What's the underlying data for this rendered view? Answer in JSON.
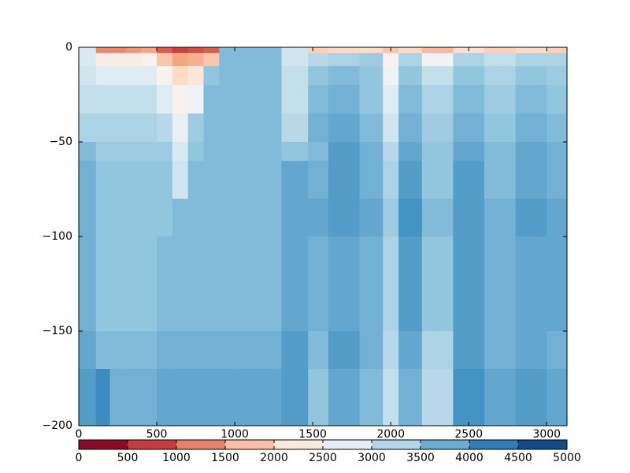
{
  "chart_data": {
    "type": "heatmap",
    "colormap": "RdBu",
    "xlim": [
      0,
      3130
    ],
    "ylim": [
      -200,
      0
    ],
    "xticks": [
      0,
      500,
      1000,
      1500,
      2000,
      2500,
      3000
    ],
    "yticks": [
      0,
      {
        "value": -50,
        "label": "−50"
      },
      {
        "value": -100,
        "label": "−100"
      },
      {
        "value": -150,
        "label": "−150"
      },
      {
        "value": -200,
        "label": "−200"
      }
    ],
    "x_edges": [
      0,
      110,
      200,
      300,
      400,
      500,
      600,
      700,
      800,
      900,
      1000,
      1300,
      1470,
      1600,
      1800,
      1950,
      2050,
      2200,
      2400,
      2600,
      2800,
      3000,
      3130
    ],
    "y_edges": [
      0,
      -3,
      -10,
      -20,
      -35,
      -50,
      -60,
      -80,
      -100,
      -150,
      -170,
      -200
    ],
    "values": [
      [
        2900,
        1300,
        1300,
        1400,
        1500,
        1000,
        800,
        900,
        1000,
        3600,
        3600,
        3000,
        1900,
        2000,
        2000,
        1800,
        2000,
        1700,
        2100,
        1900,
        2000,
        1900
      ],
      [
        2900,
        2300,
        2300,
        2300,
        2400,
        1800,
        1500,
        1600,
        1800,
        3600,
        3600,
        3000,
        3200,
        3300,
        3400,
        2400,
        3300,
        2600,
        3300,
        3100,
        3300,
        3300
      ],
      [
        3000,
        2800,
        2800,
        2800,
        2800,
        2400,
        2000,
        2200,
        3500,
        3600,
        3600,
        3100,
        3500,
        3600,
        3500,
        2600,
        3500,
        3100,
        3500,
        3300,
        3500,
        3400
      ],
      [
        3100,
        3100,
        3100,
        3100,
        3100,
        2800,
        2400,
        2600,
        3600,
        3600,
        3600,
        3100,
        3600,
        3700,
        3500,
        2800,
        3600,
        3300,
        3600,
        3400,
        3600,
        3500
      ],
      [
        3300,
        3300,
        3300,
        3300,
        3300,
        3200,
        2700,
        3400,
        3600,
        3600,
        3600,
        3200,
        3700,
        3800,
        3600,
        3000,
        3700,
        3400,
        3700,
        3500,
        3700,
        3600
      ],
      [
        3600,
        3400,
        3400,
        3400,
        3400,
        3400,
        2900,
        3500,
        3600,
        3600,
        3600,
        3500,
        3600,
        3900,
        3700,
        3200,
        3800,
        3500,
        3800,
        3600,
        3800,
        3700
      ],
      [
        3700,
        3500,
        3500,
        3500,
        3500,
        3500,
        3000,
        3600,
        3600,
        3600,
        3600,
        3800,
        3700,
        3900,
        3700,
        3300,
        3900,
        3500,
        3900,
        3600,
        3800,
        3700
      ],
      [
        3700,
        3500,
        3500,
        3500,
        3500,
        3500,
        3600,
        3600,
        3600,
        3600,
        3600,
        3800,
        3800,
        3900,
        3800,
        3400,
        4000,
        3600,
        3900,
        3700,
        3900,
        3800
      ],
      [
        3700,
        3500,
        3500,
        3500,
        3500,
        3600,
        3600,
        3600,
        3600,
        3600,
        3600,
        3800,
        3700,
        3800,
        3700,
        3300,
        3900,
        3500,
        3900,
        3700,
        3800,
        3800
      ],
      [
        3800,
        3600,
        3600,
        3600,
        3600,
        3700,
        3700,
        3700,
        3700,
        3700,
        3700,
        3900,
        3600,
        3900,
        3700,
        3200,
        3800,
        3300,
        3900,
        3700,
        3800,
        3700
      ],
      [
        3900,
        4100,
        3700,
        3700,
        3700,
        3800,
        3800,
        3800,
        3800,
        3800,
        3800,
        3900,
        3500,
        3800,
        3600,
        3100,
        3700,
        3200,
        4000,
        3800,
        3900,
        3800
      ]
    ],
    "colorbar": {
      "lim": [
        0,
        5000
      ],
      "ticks": [
        0,
        500,
        1000,
        1500,
        2000,
        2500,
        3000,
        3500,
        4000,
        4500,
        5000
      ]
    }
  }
}
